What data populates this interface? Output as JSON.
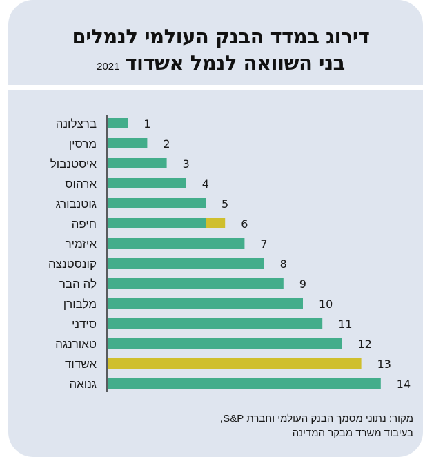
{
  "header": {
    "title_line1": "דירוג במדד הבנק העולמי לנמלים",
    "title_line2": "בני השוואה לנמל אשדוד",
    "year": "2021"
  },
  "footer": {
    "source_line1": "מקור: נתוני מסמך הבנק העולמי וחברת S&P,",
    "source_line2": "בעיבוד משרד מבקר המדינה"
  },
  "colors": {
    "background": "#dfe5ef",
    "bar_default": "#43ad8b",
    "bar_highlight": "#cfbf2d",
    "text": "#1a1a1a"
  },
  "chart_data": {
    "type": "bar",
    "orientation": "horizontal",
    "title": "דירוג במדד הבנק העולמי לנמלים בני השוואה לנמל אשדוד 2021",
    "xlabel": "",
    "ylabel": "",
    "grid": false,
    "xlim": [
      0,
      14
    ],
    "categories": [
      "ברצלונה",
      "מרסין",
      "איסטנבול",
      "ארהוס",
      "גוטנבורג",
      "חיפה",
      "איזמיר",
      "קונסטנצה",
      "לה הבר",
      "מלבורן",
      "סידני",
      "טאורנגה",
      "אשדוד",
      "גנואה"
    ],
    "values": [
      1,
      2,
      3,
      4,
      5,
      6,
      7,
      8,
      9,
      10,
      11,
      12,
      13,
      14
    ],
    "value_labels": [
      "1",
      "2",
      "3",
      "4",
      "5",
      "6",
      "7",
      "8",
      "9",
      "10",
      "11",
      "12",
      "13",
      "14"
    ],
    "highlight": {
      "אשדוד": "full",
      "חיפה": "last_unit"
    }
  }
}
